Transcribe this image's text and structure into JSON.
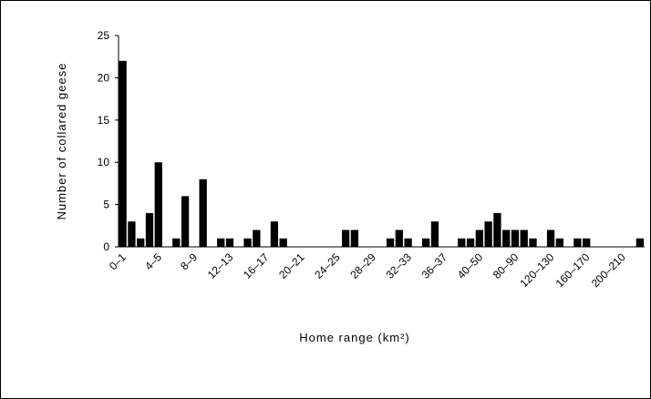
{
  "chart_data": {
    "type": "bar",
    "xlabel": "Home range (km²)",
    "ylabel": "Number of collared geese",
    "ylim": [
      0,
      25
    ],
    "yticks": [
      0,
      5,
      10,
      15,
      20,
      25
    ],
    "grid": false,
    "legend": "none",
    "bar_color": "#000000",
    "x_tick_labels": [
      "0–1",
      "4–5",
      "8–9",
      "12–13",
      "16–17",
      "20–21",
      "24–25",
      "28–29",
      "32–33",
      "36–37",
      "40–50",
      "80–90",
      "120–130",
      "160–170",
      "200–210"
    ],
    "values": [
      22,
      3,
      1,
      4,
      10,
      0,
      1,
      6,
      0,
      8,
      0,
      1,
      1,
      0,
      1,
      2,
      0,
      3,
      1,
      0,
      0,
      0,
      0,
      0,
      0,
      2,
      2,
      0,
      0,
      0,
      1,
      2,
      1,
      0,
      1,
      3,
      0,
      0,
      1,
      1,
      2,
      3,
      4,
      2,
      2,
      2,
      1,
      0,
      2,
      1,
      0,
      1,
      1,
      0,
      0,
      0,
      0,
      0,
      1
    ]
  }
}
